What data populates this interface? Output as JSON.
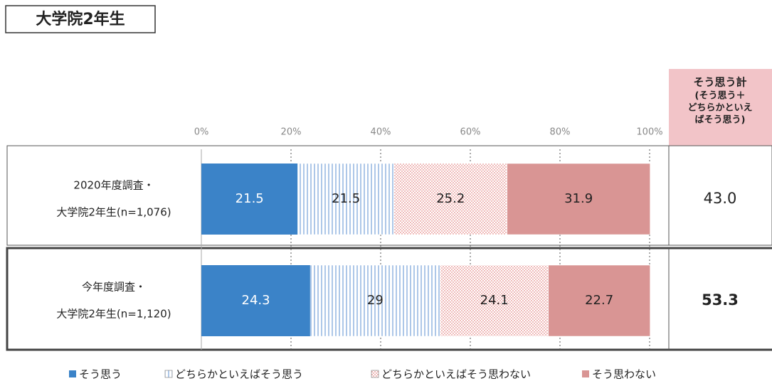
{
  "chart_data": {
    "type": "stacked-bar-horizontal",
    "title": "大学院2年生",
    "categories": [
      [
        "2020年度調査・",
        "大学院2年生(n=1,076)"
      ],
      [
        "今年度調査・",
        "大学院2年生(n=1,120)"
      ]
    ],
    "series": [
      {
        "name": "そう思う",
        "color": "#3b83c8",
        "fill_style": "solid",
        "values": [
          21.5,
          24.3
        ]
      },
      {
        "name": "どちらかといえばそう思う",
        "color": "#5b8fd0",
        "fill_style": "stripes",
        "values": [
          21.5,
          29.0
        ]
      },
      {
        "name": "どちらかといえばそう思わない",
        "color": "#d9534f",
        "fill_style": "dots",
        "values": [
          25.2,
          24.1
        ]
      },
      {
        "name": "そう思わない",
        "color": "#d99594",
        "fill_style": "solid",
        "values": [
          31.9,
          22.7
        ]
      }
    ],
    "xlim": [
      0,
      100
    ],
    "xticks": [
      {
        "value": 0,
        "label": "0%"
      },
      {
        "value": 20,
        "label": "20%"
      },
      {
        "value": 40,
        "label": "40%"
      },
      {
        "value": 60,
        "label": "60%"
      },
      {
        "value": 80,
        "label": "80%"
      },
      {
        "value": 100,
        "label": "100%"
      }
    ],
    "grid": true,
    "total_column": {
      "title": "そう思う計",
      "subtitle": [
        "(そう思う＋",
        "どちらかといえ",
        "ばそう思う)"
      ],
      "color": "#f2c4c8",
      "values": [
        43.0,
        53.3
      ],
      "value_labels": [
        "43.0",
        "53.3"
      ]
    }
  }
}
